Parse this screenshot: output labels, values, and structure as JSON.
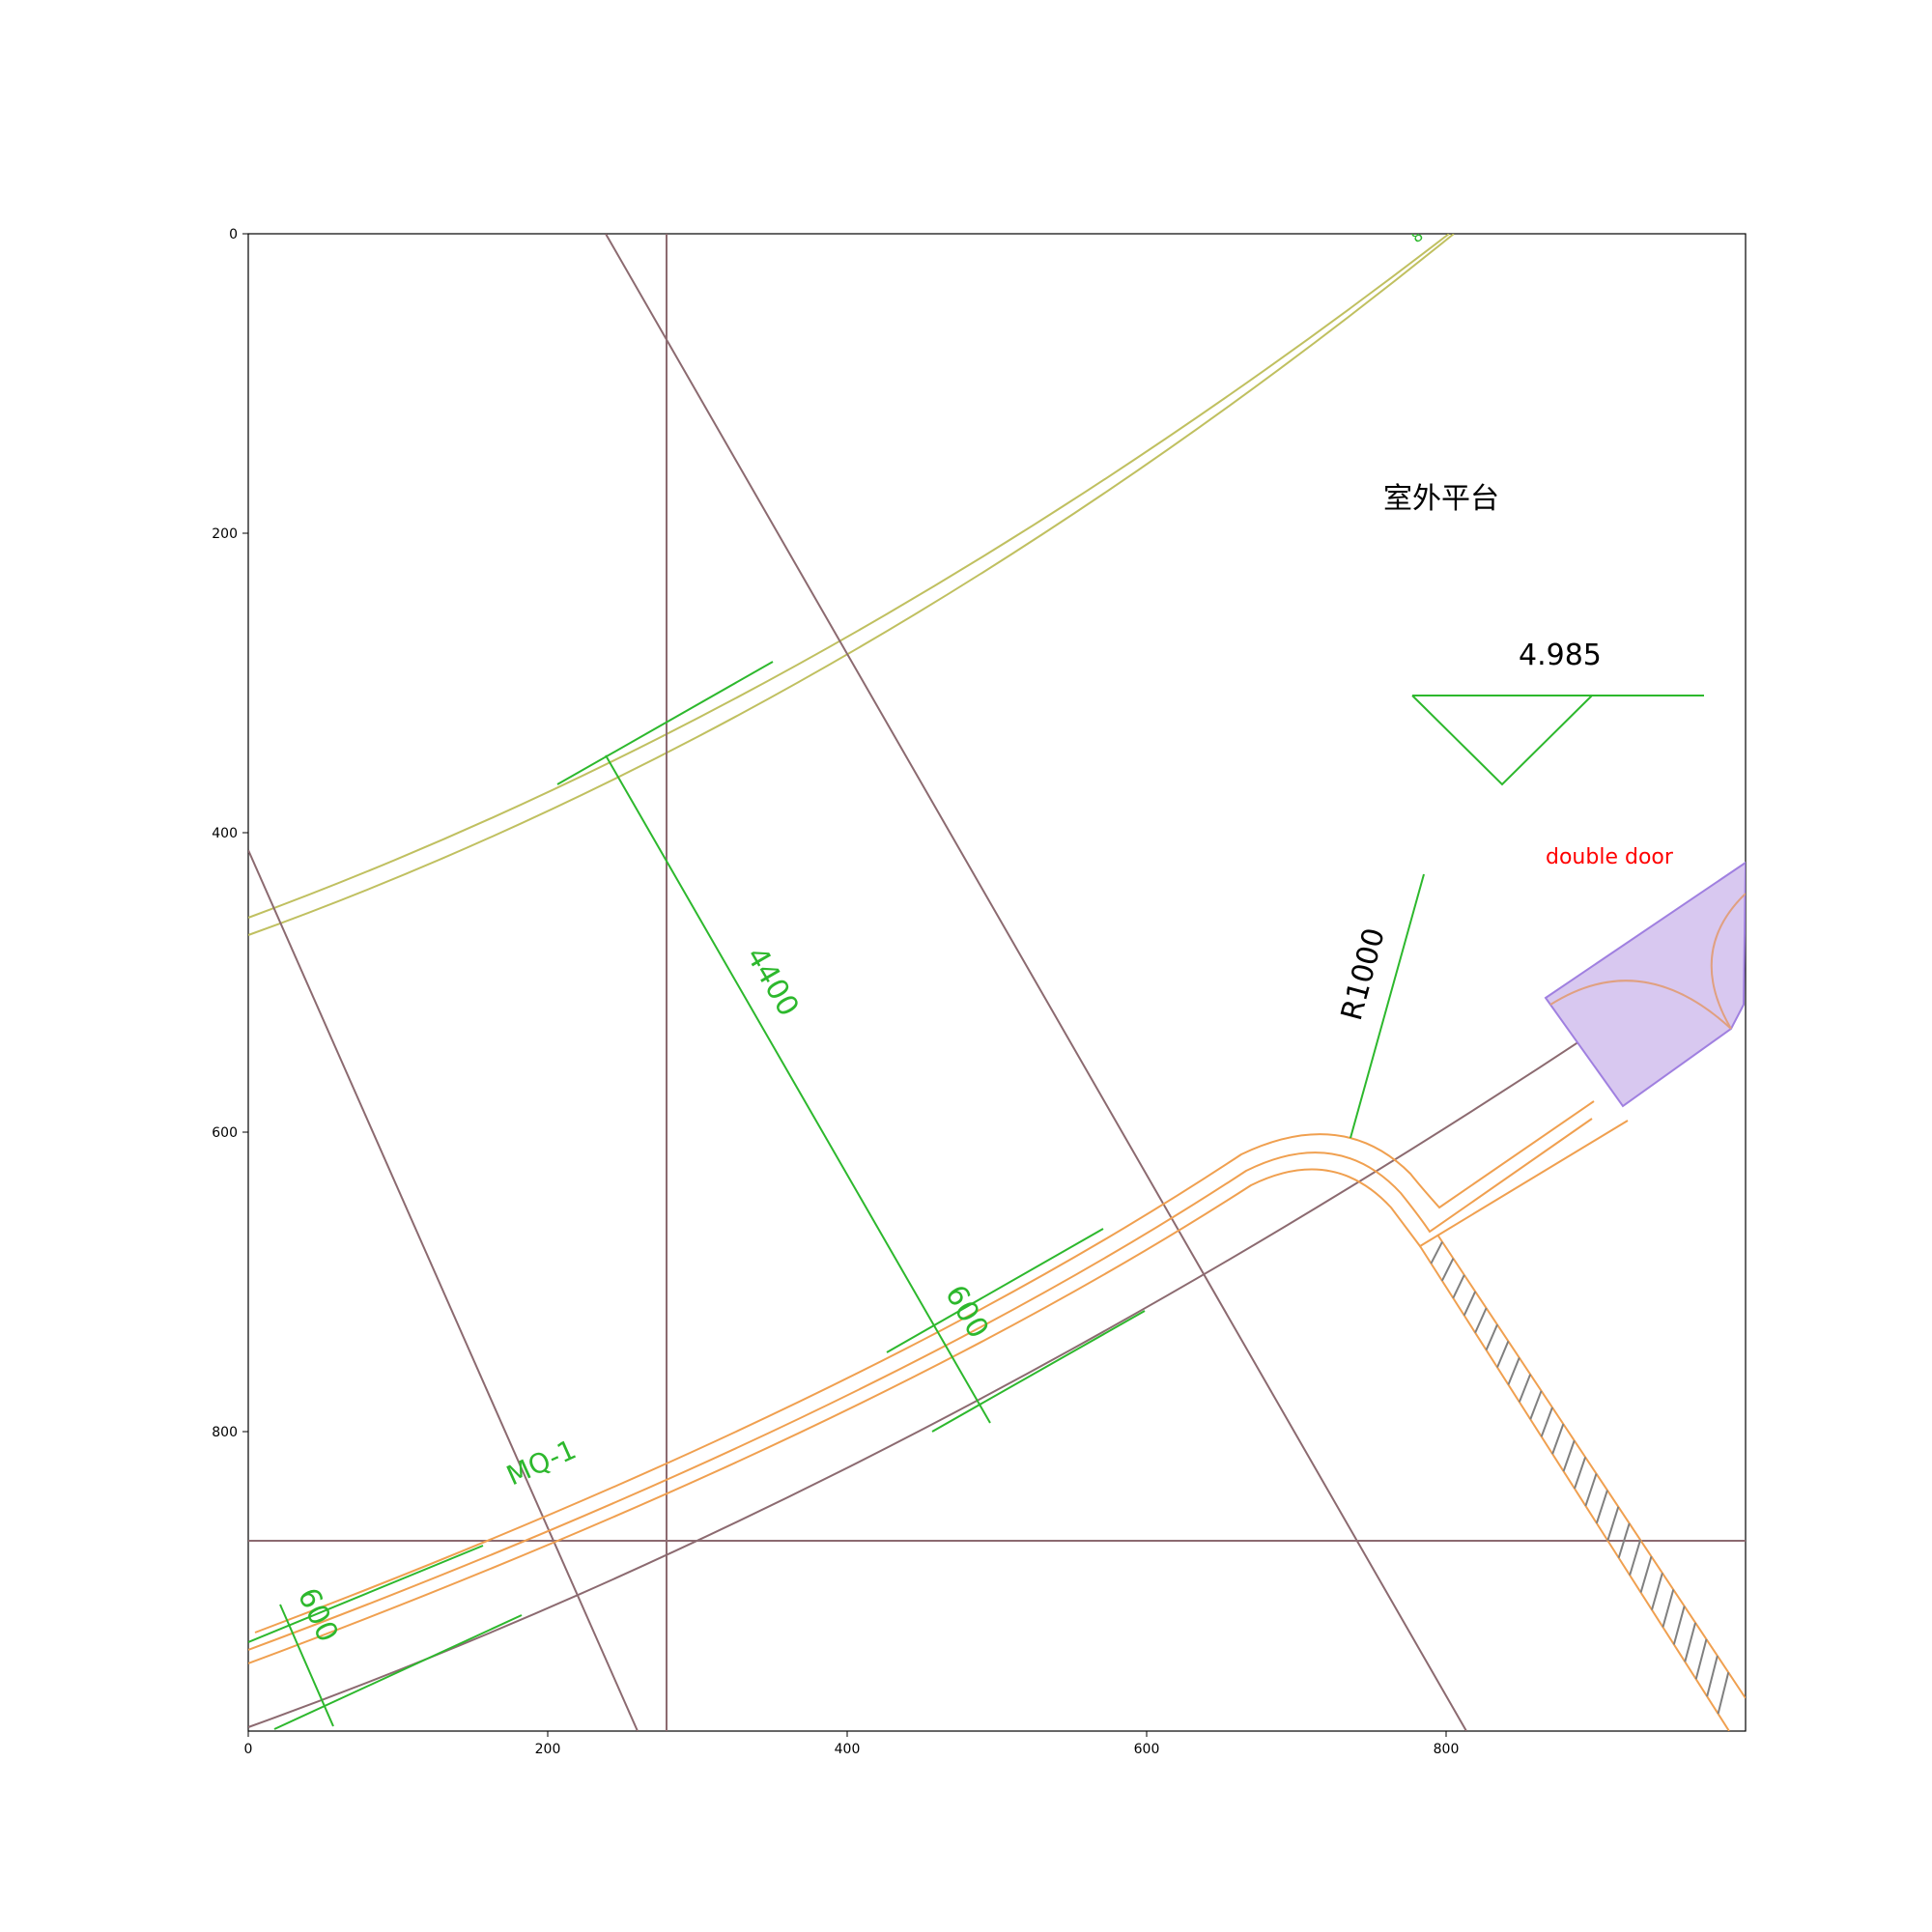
{
  "plot": {
    "x_ticks": [
      "0",
      "200",
      "400",
      "600",
      "800"
    ],
    "y_ticks": [
      "0",
      "200",
      "400",
      "600",
      "800"
    ],
    "xlim": [
      0,
      1000
    ],
    "ylim": [
      1000,
      0
    ]
  },
  "annotations": {
    "room_label": "室外平台",
    "elevation": "4.985",
    "door_label": "double door",
    "radius_label": "R1000",
    "dim_4400": "4400",
    "dim_600_mid": "600",
    "dim_600_left": "600",
    "wall_tag": "MQ-1",
    "top_marker": "8"
  },
  "colors": {
    "axis_line": "#8c6a70",
    "dimension": "#2db82d",
    "wall": "#f0a050",
    "curve": "#c0c060",
    "door_fill": "#d8c8f0",
    "door_edge": "#a080e0",
    "door_label": "#ff0000",
    "hatch": "#808080"
  }
}
